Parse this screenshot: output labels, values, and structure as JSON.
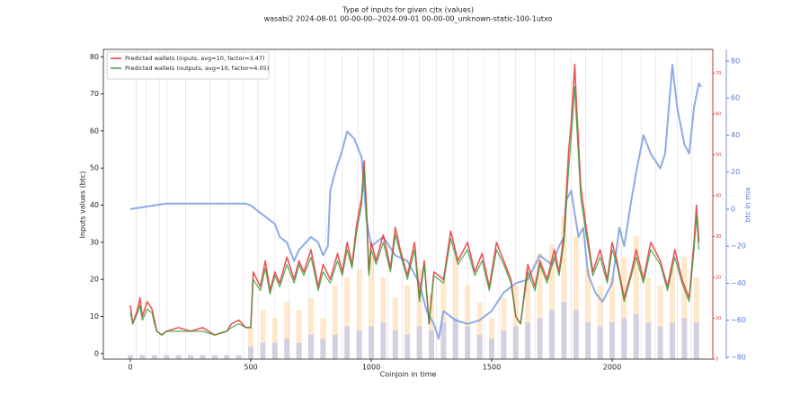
{
  "chart_data": {
    "type": "line",
    "title": "Type of inputs for given cjtx (values)",
    "subtitle": "wasabi2 2024-08-01 00-00-00--2024-09-01 00-00-00_unknown-static-100-1utxo",
    "xlabel": "Coinjoin in time",
    "ylabel": "Inputs values (btc)",
    "y2label": "btc in mix",
    "xlim": [
      -112,
      2418
    ],
    "ylim": [
      -1.5,
      82
    ],
    "y2lim": [
      -81,
      86.3
    ],
    "y3lim": [
      0,
      75.8
    ],
    "xticks": [
      0,
      500,
      1000,
      1500,
      2000
    ],
    "yticks": [
      0,
      10,
      20,
      30,
      40,
      50,
      60,
      70,
      80
    ],
    "y2ticks": [
      {
        "value": -80,
        "label": "−80"
      },
      {
        "value": -60,
        "label": "−60"
      },
      {
        "value": -40,
        "label": "−40"
      },
      {
        "value": -20,
        "label": "−20"
      },
      0,
      20,
      40,
      60,
      80
    ],
    "y3ticks": [
      0,
      10,
      20,
      30,
      40,
      50,
      60,
      70
    ],
    "y2color": "#5a78d8",
    "y3color": "#e03030",
    "legend": "upper left",
    "vlines": [
      25,
      65,
      120,
      150,
      230,
      330,
      410,
      470,
      530,
      600,
      660,
      740,
      810,
      880,
      945,
      1010,
      1070,
      1130,
      1200,
      1270,
      1340,
      1400,
      1470,
      1530,
      1600,
      1680,
      1760,
      1830,
      1890,
      1960,
      2040,
      2120,
      2180,
      2270,
      2330
    ],
    "series": [
      {
        "kind": "bar",
        "axis": "y3",
        "color": "#ffd9a8",
        "x": [
          0,
          50,
          100,
          150,
          200,
          250,
          300,
          350,
          400,
          450,
          500,
          550,
          600,
          650,
          700,
          750,
          800,
          850,
          900,
          950,
          1000,
          1050,
          1100,
          1150,
          1200,
          1250,
          1300,
          1350,
          1400,
          1450,
          1500,
          1550,
          1600,
          1650,
          1700,
          1750,
          1800,
          1850,
          1900,
          1950,
          2000,
          2050,
          2100,
          2150,
          2200,
          2250,
          2300,
          2350
        ],
        "values": [
          1,
          1,
          1,
          1,
          1,
          1,
          1,
          1,
          1,
          1,
          8,
          12,
          10,
          14,
          12,
          15,
          10,
          18,
          20,
          22,
          25,
          20,
          15,
          18,
          22,
          16,
          20,
          25,
          18,
          14,
          10,
          15,
          18,
          22,
          26,
          28,
          35,
          30,
          22,
          18,
          20,
          25,
          30,
          20,
          18,
          22,
          25,
          20
        ]
      },
      {
        "kind": "bar",
        "axis": "y3",
        "color": "#b8bff2",
        "x": [
          0,
          50,
          100,
          150,
          200,
          250,
          300,
          350,
          400,
          450,
          500,
          550,
          600,
          650,
          700,
          750,
          800,
          850,
          900,
          950,
          1000,
          1050,
          1100,
          1150,
          1200,
          1250,
          1300,
          1350,
          1400,
          1450,
          1500,
          1550,
          1600,
          1650,
          1700,
          1750,
          1800,
          1850,
          1900,
          1950,
          2000,
          2050,
          2100,
          2150,
          2200,
          2250,
          2300,
          2350
        ],
        "values": [
          1,
          1,
          1,
          1,
          1,
          1,
          1,
          1,
          1,
          1,
          3,
          4,
          4,
          5,
          4,
          6,
          5,
          6,
          8,
          7,
          8,
          9,
          7,
          6,
          8,
          7,
          9,
          10,
          8,
          6,
          5,
          7,
          8,
          9,
          10,
          12,
          14,
          12,
          9,
          8,
          9,
          10,
          11,
          9,
          8,
          9,
          10,
          9
        ]
      },
      {
        "kind": "line",
        "axis": "y2",
        "color": "#7b9be3",
        "width": 2,
        "x": [
          0,
          50,
          100,
          150,
          200,
          300,
          400,
          480,
          500,
          550,
          600,
          620,
          650,
          680,
          700,
          750,
          780,
          800,
          820,
          830,
          850,
          880,
          900,
          930,
          960,
          980,
          1000,
          1050,
          1100,
          1150,
          1200,
          1230,
          1260,
          1280,
          1300,
          1350,
          1400,
          1450,
          1500,
          1550,
          1600,
          1650,
          1700,
          1750,
          1780,
          1800,
          1810,
          1830,
          1860,
          1880,
          1900,
          1930,
          1960,
          2000,
          2030,
          2050,
          2080,
          2100,
          2130,
          2160,
          2200,
          2220,
          2250,
          2270,
          2300,
          2320,
          2340,
          2360,
          2370
        ],
        "values": [
          0,
          1,
          2,
          3,
          3,
          3,
          3,
          3,
          2,
          -3,
          -8,
          -15,
          -18,
          -28,
          -22,
          -15,
          -18,
          -25,
          -20,
          10,
          20,
          32,
          42,
          38,
          28,
          -5,
          -20,
          -15,
          -25,
          -28,
          -40,
          -55,
          -62,
          -70,
          -55,
          -60,
          -62,
          -60,
          -55,
          -45,
          -40,
          -38,
          -25,
          -30,
          -20,
          -15,
          5,
          10,
          -15,
          -10,
          -35,
          -45,
          -50,
          -40,
          -10,
          -20,
          5,
          20,
          40,
          30,
          22,
          30,
          78,
          55,
          35,
          30,
          55,
          68,
          66
        ]
      },
      {
        "kind": "line",
        "name": "Predicted wallets (inputs, avg=10, factor=3.47)",
        "color": "#e8383a",
        "width": 1.6,
        "x": [
          0,
          10,
          30,
          40,
          50,
          70,
          90,
          100,
          110,
          130,
          150,
          200,
          250,
          300,
          350,
          400,
          420,
          450,
          480,
          500,
          510,
          540,
          560,
          580,
          600,
          620,
          650,
          680,
          700,
          720,
          750,
          780,
          800,
          830,
          860,
          880,
          900,
          920,
          940,
          960,
          970,
          980,
          990,
          1000,
          1020,
          1050,
          1080,
          1100,
          1120,
          1150,
          1180,
          1200,
          1220,
          1240,
          1260,
          1300,
          1330,
          1360,
          1400,
          1430,
          1460,
          1490,
          1520,
          1550,
          1580,
          1600,
          1620,
          1650,
          1680,
          1700,
          1730,
          1760,
          1780,
          1800,
          1820,
          1830,
          1845,
          1850,
          1870,
          1890,
          1920,
          1950,
          1980,
          2000,
          2020,
          2050,
          2080,
          2100,
          2130,
          2160,
          2200,
          2230,
          2260,
          2290,
          2320,
          2340,
          2350,
          2360
        ],
        "values": [
          13,
          8,
          12,
          15,
          10,
          14,
          12,
          9,
          6,
          5,
          6,
          7,
          6,
          7,
          5,
          6,
          8,
          9,
          7,
          7,
          22,
          18,
          25,
          17,
          22,
          19,
          26,
          20,
          25,
          22,
          28,
          18,
          24,
          20,
          27,
          22,
          30,
          24,
          35,
          42,
          52,
          40,
          22,
          30,
          25,
          32,
          23,
          34,
          28,
          21,
          30,
          15,
          25,
          8,
          22,
          20,
          33,
          25,
          30,
          22,
          27,
          18,
          30,
          25,
          20,
          10,
          8,
          24,
          18,
          25,
          20,
          28,
          22,
          32,
          55,
          62,
          78,
          70,
          45,
          35,
          22,
          28,
          20,
          30,
          25,
          15,
          22,
          28,
          20,
          30,
          25,
          18,
          28,
          20,
          15,
          30,
          40,
          30
        ]
      },
      {
        "kind": "line",
        "name": "Predicted wallets (outputs, avg=10, factor=4.05)",
        "color": "#3a9a3a",
        "width": 1.2,
        "x": [
          0,
          10,
          30,
          40,
          50,
          70,
          90,
          100,
          110,
          130,
          150,
          200,
          250,
          300,
          350,
          400,
          420,
          450,
          480,
          500,
          510,
          540,
          560,
          580,
          600,
          620,
          650,
          680,
          700,
          720,
          750,
          780,
          800,
          830,
          860,
          880,
          900,
          920,
          940,
          960,
          970,
          980,
          990,
          1000,
          1020,
          1050,
          1080,
          1100,
          1120,
          1150,
          1180,
          1200,
          1220,
          1240,
          1260,
          1300,
          1330,
          1360,
          1400,
          1430,
          1460,
          1490,
          1520,
          1550,
          1580,
          1600,
          1620,
          1650,
          1680,
          1700,
          1730,
          1760,
          1780,
          1800,
          1820,
          1830,
          1845,
          1850,
          1870,
          1890,
          1920,
          1950,
          1980,
          2000,
          2020,
          2050,
          2080,
          2100,
          2130,
          2160,
          2200,
          2230,
          2260,
          2290,
          2320,
          2340,
          2350,
          2360
        ],
        "values": [
          11,
          8,
          11,
          13,
          9,
          12,
          11,
          8,
          6,
          5,
          6,
          6,
          6,
          6,
          5,
          6,
          7,
          8,
          7,
          7,
          20,
          17,
          23,
          16,
          21,
          18,
          24,
          19,
          24,
          21,
          26,
          17,
          22,
          19,
          25,
          21,
          28,
          23,
          33,
          40,
          50,
          38,
          21,
          28,
          24,
          30,
          22,
          32,
          27,
          20,
          28,
          14,
          24,
          8,
          21,
          19,
          31,
          24,
          28,
          21,
          25,
          17,
          28,
          24,
          19,
          10,
          8,
          22,
          17,
          24,
          19,
          26,
          21,
          30,
          50,
          58,
          72,
          65,
          42,
          33,
          21,
          26,
          19,
          28,
          24,
          14,
          21,
          26,
          19,
          28,
          24,
          17,
          26,
          19,
          14,
          28,
          37,
          28
        ]
      }
    ]
  }
}
